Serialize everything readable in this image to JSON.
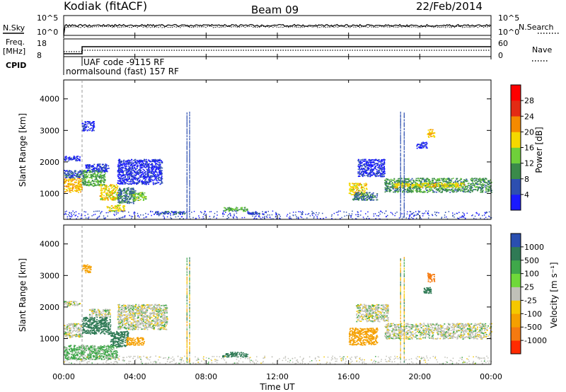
{
  "header": {
    "station": "Kodiak (fitACF)",
    "beam": "Beam 09",
    "date": "22/Feb/2014"
  },
  "top_panels": {
    "nsky_label": "N.Sky",
    "nsearch_label": "N.Search",
    "noise_ticks_left": [
      "10^5",
      "10^0"
    ],
    "noise_ticks_right": [
      "10^5",
      "10^0"
    ],
    "freq_label_1": "Freq.",
    "freq_label_2": "[MHz]",
    "freq_ticks": [
      "18",
      "8"
    ],
    "nave_label": "Nave",
    "nave_ticks": [
      "60",
      "0"
    ],
    "cpid_label": "CPID",
    "cpid_code_line": "UAF code -9115 RF",
    "cpid_mode_line": "normalsound (fast) 157 RF"
  },
  "x_axis": {
    "label": "Time UT",
    "ticks": [
      "00:00",
      "04:00",
      "08:00",
      "12:00",
      "16:00",
      "20:00",
      "00:00"
    ]
  },
  "y_axis": {
    "label": "Slant Range [km]",
    "ticks": [
      "1000",
      "2000",
      "3000",
      "4000"
    ]
  },
  "power_colorbar": {
    "label": "Power [dB]",
    "ticks": [
      "4",
      "8",
      "12",
      "16",
      "20",
      "24",
      "28"
    ],
    "colors": [
      "#1a1aff",
      "#2d4fb0",
      "#3a8a4a",
      "#6fd03a",
      "#f5d800",
      "#f58a00",
      "#e32b14",
      "#ff0000"
    ]
  },
  "velocity_colorbar": {
    "label": "Velocity [m s⁻¹]",
    "ticks": [
      "1000",
      "500",
      "100",
      "25",
      "-25",
      "-100",
      "-500",
      "-1000"
    ],
    "colors": [
      "#2a4fb0",
      "#2f7a55",
      "#3fa84a",
      "#6fd83a",
      "#c0c0b8",
      "#f5c800",
      "#f5a000",
      "#f57a10",
      "#ff2a00"
    ]
  },
  "chart_data": [
    {
      "type": "heatmap",
      "title": "Power",
      "xlabel": "Time UT",
      "ylabel": "Slant Range [km]",
      "xlim": [
        0,
        24
      ],
      "ylim": [
        180,
        4600
      ],
      "clim": [
        0,
        30
      ],
      "units": "dB",
      "regions": [
        {
          "t0": 0.0,
          "t1": 1.0,
          "r0": 1050,
          "r1": 1500,
          "v": 22
        },
        {
          "t0": 0.0,
          "t1": 1.2,
          "r0": 1500,
          "r1": 1750,
          "v": 8
        },
        {
          "t0": 0.0,
          "t1": 0.9,
          "r0": 2050,
          "r1": 2200,
          "v": 5
        },
        {
          "t0": 1.0,
          "t1": 2.3,
          "r0": 1250,
          "r1": 1750,
          "v": 14
        },
        {
          "t0": 1.2,
          "t1": 2.5,
          "r0": 1700,
          "r1": 1950,
          "v": 6
        },
        {
          "t0": 2.0,
          "t1": 3.0,
          "r0": 800,
          "r1": 1300,
          "v": 20
        },
        {
          "t0": 2.4,
          "t1": 3.4,
          "r0": 450,
          "r1": 650,
          "v": 20
        },
        {
          "t0": 3.0,
          "t1": 4.0,
          "r0": 700,
          "r1": 1200,
          "v": 10
        },
        {
          "t0": 3.8,
          "t1": 4.6,
          "r0": 800,
          "r1": 1050,
          "v": 16
        },
        {
          "t0": 3.0,
          "t1": 5.5,
          "r0": 1300,
          "r1": 2100,
          "v": 5
        },
        {
          "t0": 1.0,
          "t1": 1.7,
          "r0": 3000,
          "r1": 3300,
          "v": 5
        },
        {
          "t0": 5.0,
          "t1": 6.8,
          "r0": 350,
          "r1": 450,
          "v": 8
        },
        {
          "t0": 8.9,
          "t1": 10.3,
          "r0": 450,
          "r1": 580,
          "v": 14
        },
        {
          "t0": 10.3,
          "t1": 11.0,
          "r0": 350,
          "r1": 420,
          "v": 8
        },
        {
          "t0": 16.0,
          "t1": 17.0,
          "r0": 950,
          "r1": 1350,
          "v": 20
        },
        {
          "t0": 16.2,
          "t1": 17.6,
          "r0": 800,
          "r1": 1050,
          "v": 10
        },
        {
          "t0": 16.5,
          "t1": 18.0,
          "r0": 1550,
          "r1": 2100,
          "v": 5
        },
        {
          "t0": 18.0,
          "t1": 24.0,
          "r0": 1050,
          "r1": 1500,
          "v": 12
        },
        {
          "t0": 18.5,
          "t1": 22.5,
          "r0": 1200,
          "r1": 1350,
          "v": 20
        },
        {
          "t0": 20.4,
          "t1": 20.8,
          "r0": 2800,
          "r1": 3050,
          "v": 22
        },
        {
          "t0": 19.8,
          "t1": 20.4,
          "r0": 2450,
          "r1": 2650,
          "v": 5
        }
      ]
    },
    {
      "type": "heatmap",
      "title": "Velocity",
      "xlabel": "Time UT",
      "ylabel": "Slant Range [km]",
      "xlim": [
        0,
        24
      ],
      "ylim": [
        180,
        4600
      ],
      "clim": [
        -1000,
        1000
      ],
      "units": "m s-1",
      "regions": [
        {
          "t0": 0.0,
          "t1": 1.0,
          "r0": 1050,
          "r1": 1500,
          "v": 0
        },
        {
          "t0": 0.0,
          "t1": 0.9,
          "r0": 2050,
          "r1": 2200,
          "v": 0
        },
        {
          "t0": 1.0,
          "t1": 2.6,
          "r0": 1150,
          "r1": 1700,
          "v": 150
        },
        {
          "t0": 1.4,
          "t1": 2.6,
          "r0": 1700,
          "r1": 1950,
          "v": 0
        },
        {
          "t0": 2.6,
          "t1": 3.6,
          "r0": 750,
          "r1": 1250,
          "v": 150
        },
        {
          "t0": 3.5,
          "t1": 4.5,
          "r0": 800,
          "r1": 1050,
          "v": -200
        },
        {
          "t0": 3.0,
          "t1": 5.8,
          "r0": 1300,
          "r1": 2100,
          "v": 0
        },
        {
          "t0": 1.0,
          "t1": 1.5,
          "r0": 3100,
          "r1": 3350,
          "v": -300
        },
        {
          "t0": 0.0,
          "t1": 3.0,
          "r0": 350,
          "r1": 800,
          "v": 50
        },
        {
          "t0": 8.9,
          "t1": 10.3,
          "r0": 430,
          "r1": 580,
          "v": 150
        },
        {
          "t0": 16.0,
          "t1": 17.6,
          "r0": 800,
          "r1": 1350,
          "v": -150
        },
        {
          "t0": 16.4,
          "t1": 18.2,
          "r0": 1550,
          "r1": 2100,
          "v": 0
        },
        {
          "t0": 18.0,
          "t1": 24.0,
          "r0": 1000,
          "r1": 1500,
          "v": 0
        },
        {
          "t0": 20.4,
          "t1": 20.8,
          "r0": 2800,
          "r1": 3100,
          "v": -600
        },
        {
          "t0": 20.2,
          "t1": 20.6,
          "r0": 2450,
          "r1": 2650,
          "v": 150
        }
      ]
    }
  ]
}
